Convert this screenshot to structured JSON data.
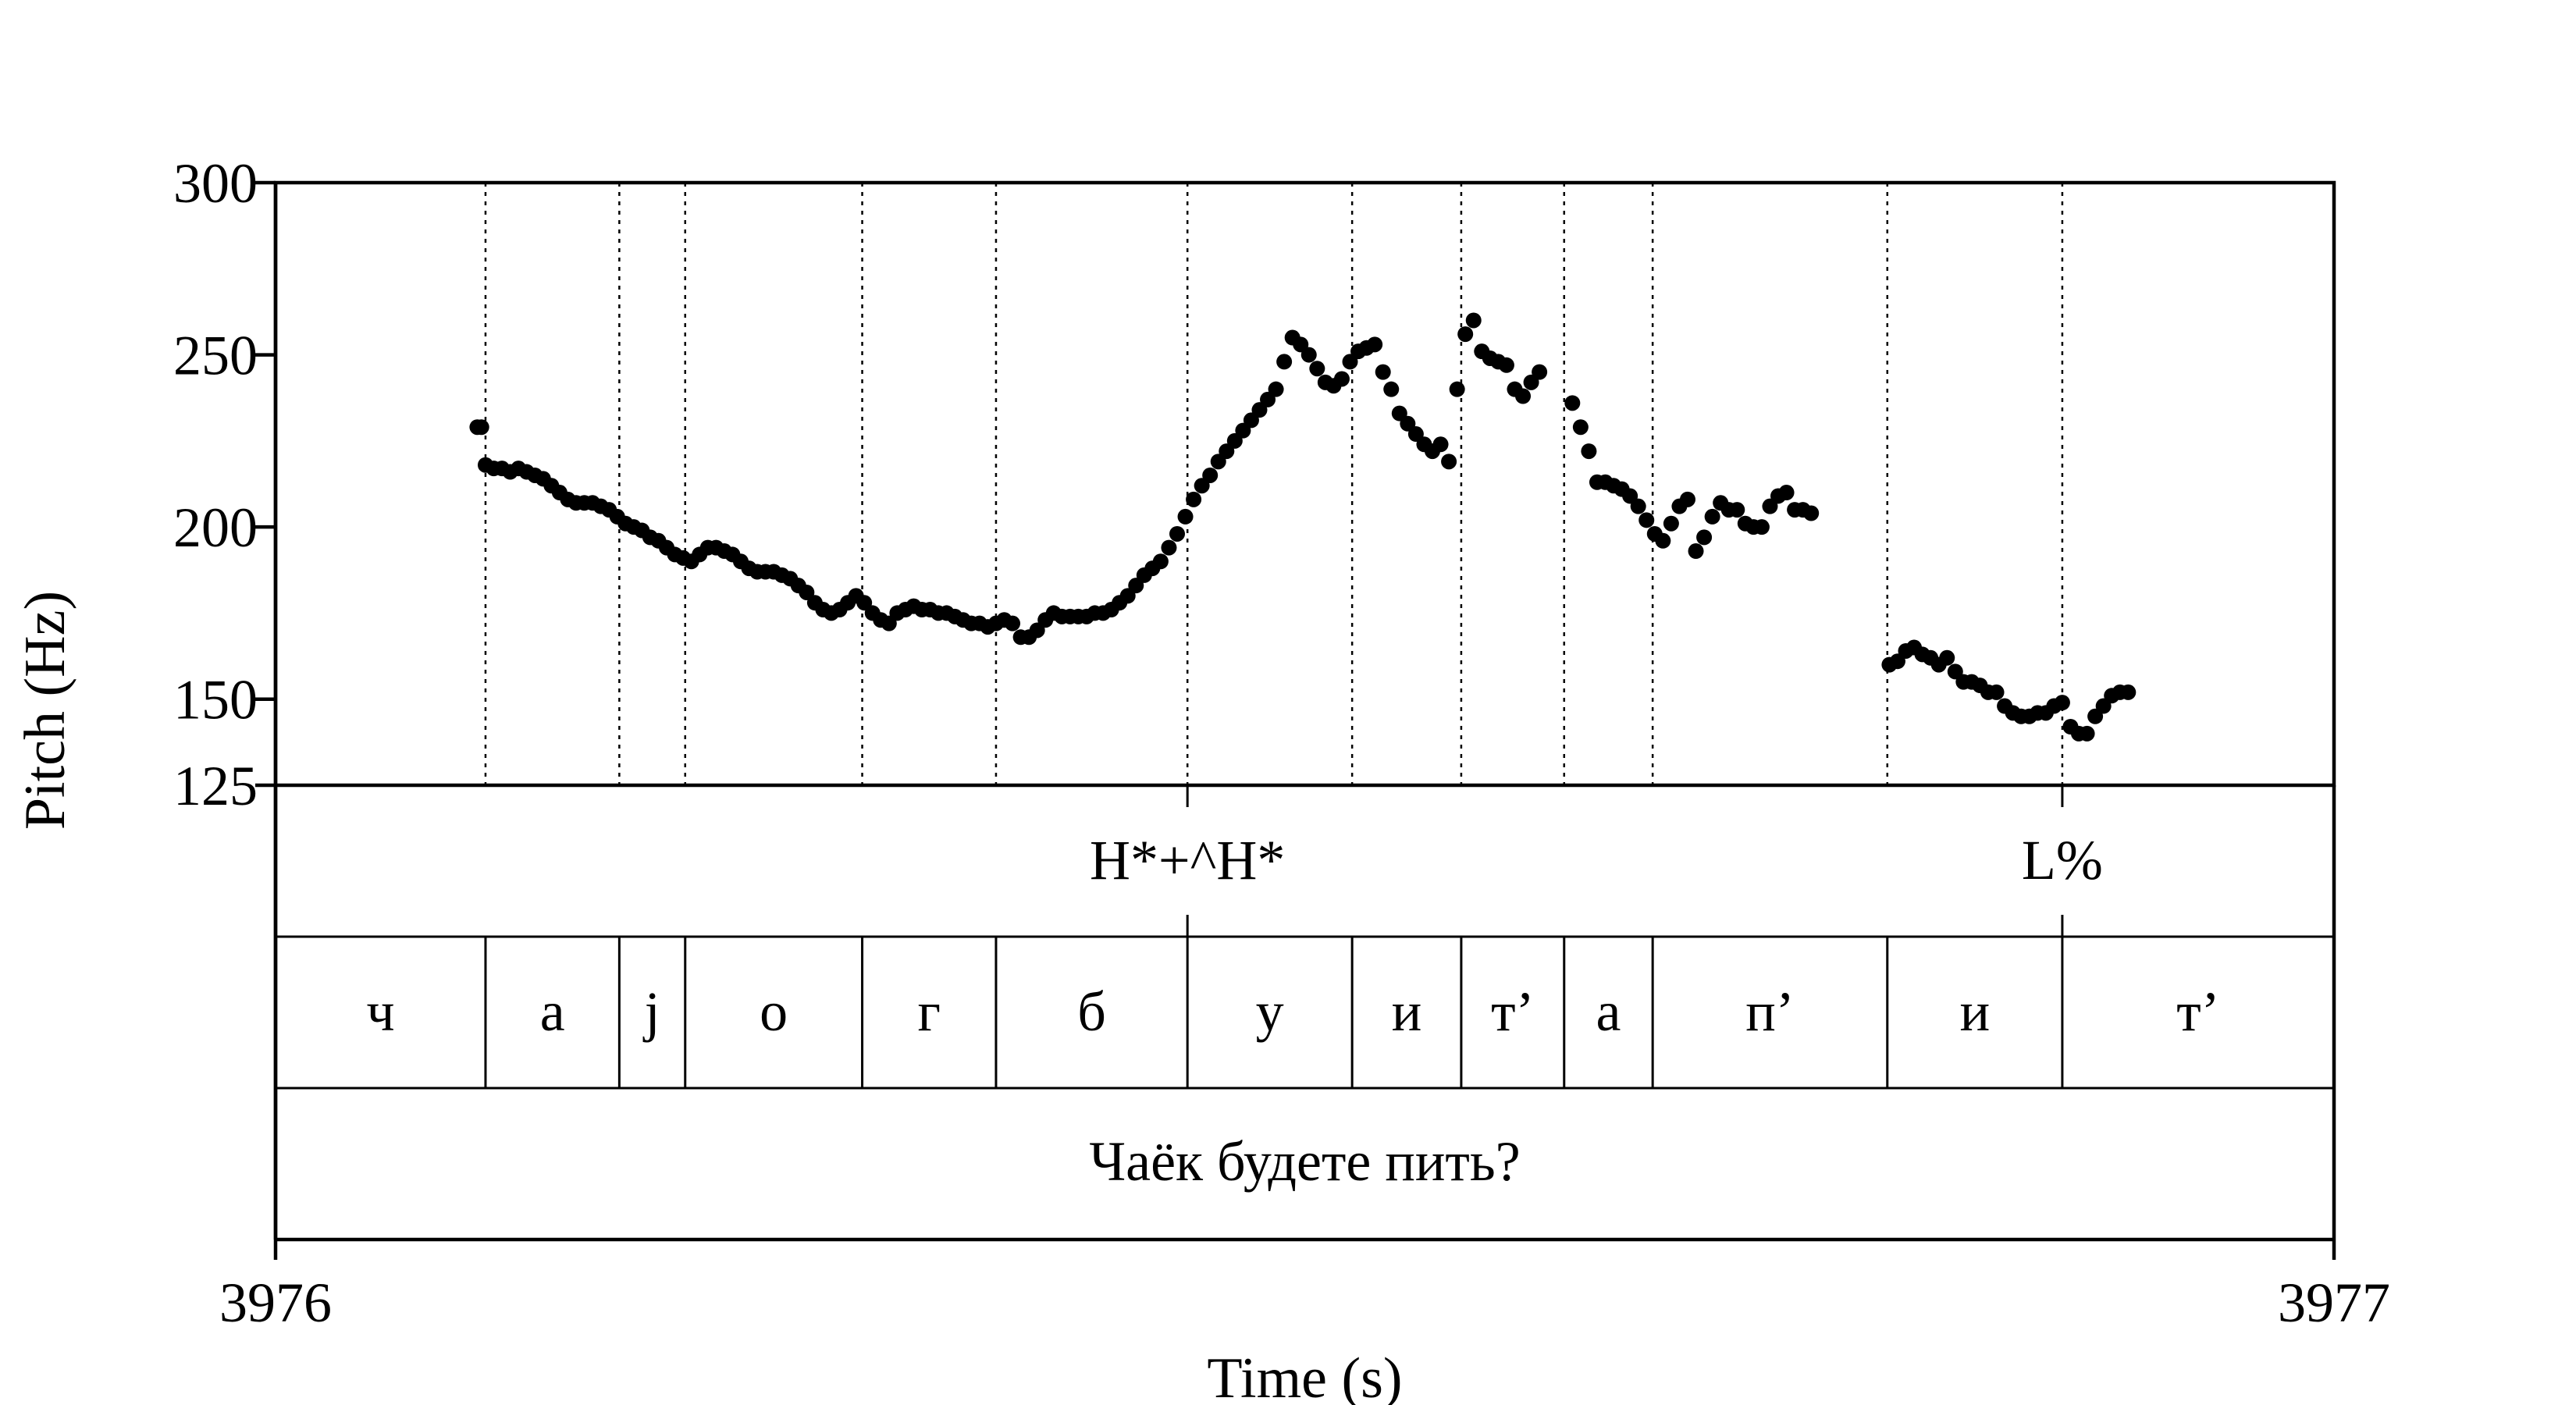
{
  "chart_data": {
    "type": "scatter",
    "title": "",
    "xlabel": "Time (s)",
    "ylabel": "Pitch (Hz)",
    "xlim": [
      3976,
      3977
    ],
    "ylim": [
      125,
      300
    ],
    "x_ticks": [
      "3976",
      "3977"
    ],
    "y_ticks": [
      "300",
      "250",
      "200",
      "150",
      "125"
    ],
    "x_tick_values": [
      3976,
      3977
    ],
    "y_tick_values": [
      300,
      250,
      200,
      150,
      125
    ],
    "grid": false,
    "marker_color": "#000000",
    "segment_boundaries": [
      3976.102,
      3976.167,
      3976.199,
      3976.285,
      3976.35,
      3976.443,
      3976.523,
      3976.576,
      3976.626,
      3976.669,
      3976.783,
      3976.868
    ],
    "tiers": {
      "tones": [
        {
          "time": 3976.443,
          "label": "H*+^H*"
        },
        {
          "time": 3976.868,
          "label": "L%"
        }
      ],
      "segments": [
        {
          "start": 3976.0,
          "end": 3976.102,
          "label": "ч"
        },
        {
          "start": 3976.102,
          "end": 3976.167,
          "label": "а"
        },
        {
          "start": 3976.167,
          "end": 3976.199,
          "label": "j"
        },
        {
          "start": 3976.199,
          "end": 3976.285,
          "label": "о"
        },
        {
          "start": 3976.285,
          "end": 3976.35,
          "label": "г"
        },
        {
          "start": 3976.35,
          "end": 3976.443,
          "label": "б"
        },
        {
          "start": 3976.443,
          "end": 3976.523,
          "label": "у"
        },
        {
          "start": 3976.523,
          "end": 3976.576,
          "label": "и"
        },
        {
          "start": 3976.576,
          "end": 3976.626,
          "label": "т’"
        },
        {
          "start": 3976.626,
          "end": 3976.669,
          "label": "а"
        },
        {
          "start": 3976.669,
          "end": 3976.783,
          "label": "п’"
        },
        {
          "start": 3976.783,
          "end": 3976.868,
          "label": "и"
        },
        {
          "start": 3976.868,
          "end": 3977.0,
          "label": "т’"
        }
      ],
      "utterance": "Чаёк будете пить?"
    },
    "series": [
      {
        "points": [
          [
            3976.098,
            229
          ],
          [
            3976.1,
            229
          ],
          [
            3976.102,
            218
          ],
          [
            3976.106,
            217
          ],
          [
            3976.11,
            217
          ],
          [
            3976.114,
            216
          ],
          [
            3976.118,
            217
          ],
          [
            3976.122,
            216
          ],
          [
            3976.126,
            215
          ],
          [
            3976.13,
            214
          ],
          [
            3976.134,
            212
          ],
          [
            3976.138,
            210
          ],
          [
            3976.142,
            208
          ],
          [
            3976.146,
            207
          ],
          [
            3976.15,
            207
          ],
          [
            3976.154,
            207
          ],
          [
            3976.158,
            206
          ],
          [
            3976.162,
            205
          ],
          [
            3976.166,
            203
          ],
          [
            3976.17,
            201
          ],
          [
            3976.174,
            200
          ],
          [
            3976.178,
            199
          ],
          [
            3976.182,
            197
          ],
          [
            3976.186,
            196
          ],
          [
            3976.19,
            194
          ],
          [
            3976.194,
            192
          ],
          [
            3976.198,
            191
          ],
          [
            3976.202,
            190
          ],
          [
            3976.206,
            192
          ],
          [
            3976.21,
            194
          ],
          [
            3976.214,
            194
          ],
          [
            3976.218,
            193
          ],
          [
            3976.222,
            192
          ],
          [
            3976.226,
            190
          ],
          [
            3976.23,
            188
          ],
          [
            3976.234,
            187
          ],
          [
            3976.238,
            187
          ],
          [
            3976.242,
            187
          ],
          [
            3976.246,
            186
          ],
          [
            3976.25,
            185
          ],
          [
            3976.254,
            183
          ],
          [
            3976.258,
            181
          ],
          [
            3976.262,
            178
          ],
          [
            3976.266,
            176
          ],
          [
            3976.27,
            175
          ],
          [
            3976.274,
            176
          ],
          [
            3976.278,
            178
          ],
          [
            3976.282,
            180
          ],
          [
            3976.286,
            178
          ],
          [
            3976.29,
            175
          ],
          [
            3976.294,
            173
          ],
          [
            3976.298,
            172
          ],
          [
            3976.302,
            175
          ],
          [
            3976.306,
            176
          ],
          [
            3976.31,
            177
          ],
          [
            3976.314,
            176
          ],
          [
            3976.318,
            176
          ],
          [
            3976.322,
            175
          ],
          [
            3976.326,
            175
          ],
          [
            3976.33,
            174
          ],
          [
            3976.334,
            173
          ],
          [
            3976.338,
            172
          ],
          [
            3976.342,
            172
          ],
          [
            3976.346,
            171
          ],
          [
            3976.35,
            172
          ],
          [
            3976.354,
            173
          ],
          [
            3976.358,
            172
          ],
          [
            3976.362,
            168
          ],
          [
            3976.366,
            168
          ],
          [
            3976.37,
            170
          ],
          [
            3976.374,
            173
          ],
          [
            3976.378,
            175
          ],
          [
            3976.382,
            174
          ],
          [
            3976.386,
            174
          ],
          [
            3976.39,
            174
          ],
          [
            3976.394,
            174
          ],
          [
            3976.398,
            175
          ],
          [
            3976.402,
            175
          ],
          [
            3976.406,
            176
          ],
          [
            3976.41,
            178
          ],
          [
            3976.414,
            180
          ],
          [
            3976.418,
            183
          ],
          [
            3976.422,
            186
          ],
          [
            3976.426,
            188
          ],
          [
            3976.43,
            190
          ],
          [
            3976.434,
            194
          ],
          [
            3976.438,
            198
          ],
          [
            3976.442,
            203
          ],
          [
            3976.446,
            208
          ],
          [
            3976.45,
            212
          ],
          [
            3976.454,
            215
          ],
          [
            3976.458,
            219
          ],
          [
            3976.462,
            222
          ],
          [
            3976.466,
            225
          ],
          [
            3976.47,
            228
          ],
          [
            3976.474,
            231
          ],
          [
            3976.478,
            234
          ],
          [
            3976.482,
            237
          ],
          [
            3976.486,
            240
          ],
          [
            3976.49,
            248
          ],
          [
            3976.494,
            255
          ],
          [
            3976.498,
            253
          ],
          [
            3976.502,
            250
          ],
          [
            3976.506,
            246
          ],
          [
            3976.51,
            242
          ],
          [
            3976.514,
            241
          ],
          [
            3976.518,
            243
          ],
          [
            3976.522,
            248
          ],
          [
            3976.526,
            251
          ],
          [
            3976.53,
            252
          ],
          [
            3976.534,
            253
          ],
          [
            3976.538,
            245
          ],
          [
            3976.542,
            240
          ],
          [
            3976.546,
            233
          ],
          [
            3976.55,
            230
          ],
          [
            3976.554,
            227
          ],
          [
            3976.558,
            224
          ],
          [
            3976.562,
            222
          ],
          [
            3976.566,
            224
          ],
          [
            3976.57,
            219
          ],
          [
            3976.574,
            240
          ],
          [
            3976.578,
            256
          ],
          [
            3976.582,
            260
          ],
          [
            3976.586,
            251
          ],
          [
            3976.59,
            249
          ],
          [
            3976.594,
            248
          ],
          [
            3976.598,
            247
          ],
          [
            3976.602,
            240
          ],
          [
            3976.606,
            238
          ],
          [
            3976.61,
            242
          ],
          [
            3976.614,
            245
          ],
          [
            3976.63,
            236
          ],
          [
            3976.634,
            229
          ],
          [
            3976.638,
            222
          ],
          [
            3976.642,
            213
          ],
          [
            3976.646,
            213
          ],
          [
            3976.65,
            212
          ],
          [
            3976.654,
            211
          ],
          [
            3976.658,
            209
          ],
          [
            3976.662,
            206
          ],
          [
            3976.666,
            202
          ],
          [
            3976.67,
            198
          ],
          [
            3976.674,
            196
          ],
          [
            3976.678,
            201
          ],
          [
            3976.682,
            206
          ],
          [
            3976.686,
            208
          ],
          [
            3976.69,
            193
          ],
          [
            3976.694,
            197
          ],
          [
            3976.698,
            203
          ],
          [
            3976.702,
            207
          ],
          [
            3976.706,
            205
          ],
          [
            3976.71,
            205
          ],
          [
            3976.714,
            201
          ],
          [
            3976.718,
            200
          ],
          [
            3976.722,
            200
          ],
          [
            3976.726,
            206
          ],
          [
            3976.73,
            209
          ],
          [
            3976.734,
            210
          ],
          [
            3976.738,
            205
          ],
          [
            3976.742,
            205
          ],
          [
            3976.746,
            204
          ],
          [
            3976.784,
            160
          ],
          [
            3976.788,
            161
          ],
          [
            3976.792,
            164
          ],
          [
            3976.796,
            165
          ],
          [
            3976.8,
            163
          ],
          [
            3976.804,
            162
          ],
          [
            3976.808,
            160
          ],
          [
            3976.812,
            162
          ],
          [
            3976.816,
            158
          ],
          [
            3976.82,
            155
          ],
          [
            3976.824,
            155
          ],
          [
            3976.828,
            154
          ],
          [
            3976.832,
            152
          ],
          [
            3976.836,
            152
          ],
          [
            3976.84,
            148
          ],
          [
            3976.844,
            146
          ],
          [
            3976.848,
            145
          ],
          [
            3976.852,
            145
          ],
          [
            3976.856,
            146
          ],
          [
            3976.86,
            146
          ],
          [
            3976.864,
            148
          ],
          [
            3976.868,
            149
          ],
          [
            3976.872,
            142
          ],
          [
            3976.876,
            140
          ],
          [
            3976.88,
            140
          ],
          [
            3976.884,
            145
          ],
          [
            3976.888,
            148
          ],
          [
            3976.892,
            151
          ],
          [
            3976.896,
            152
          ],
          [
            3976.9,
            152
          ]
        ]
      }
    ]
  }
}
